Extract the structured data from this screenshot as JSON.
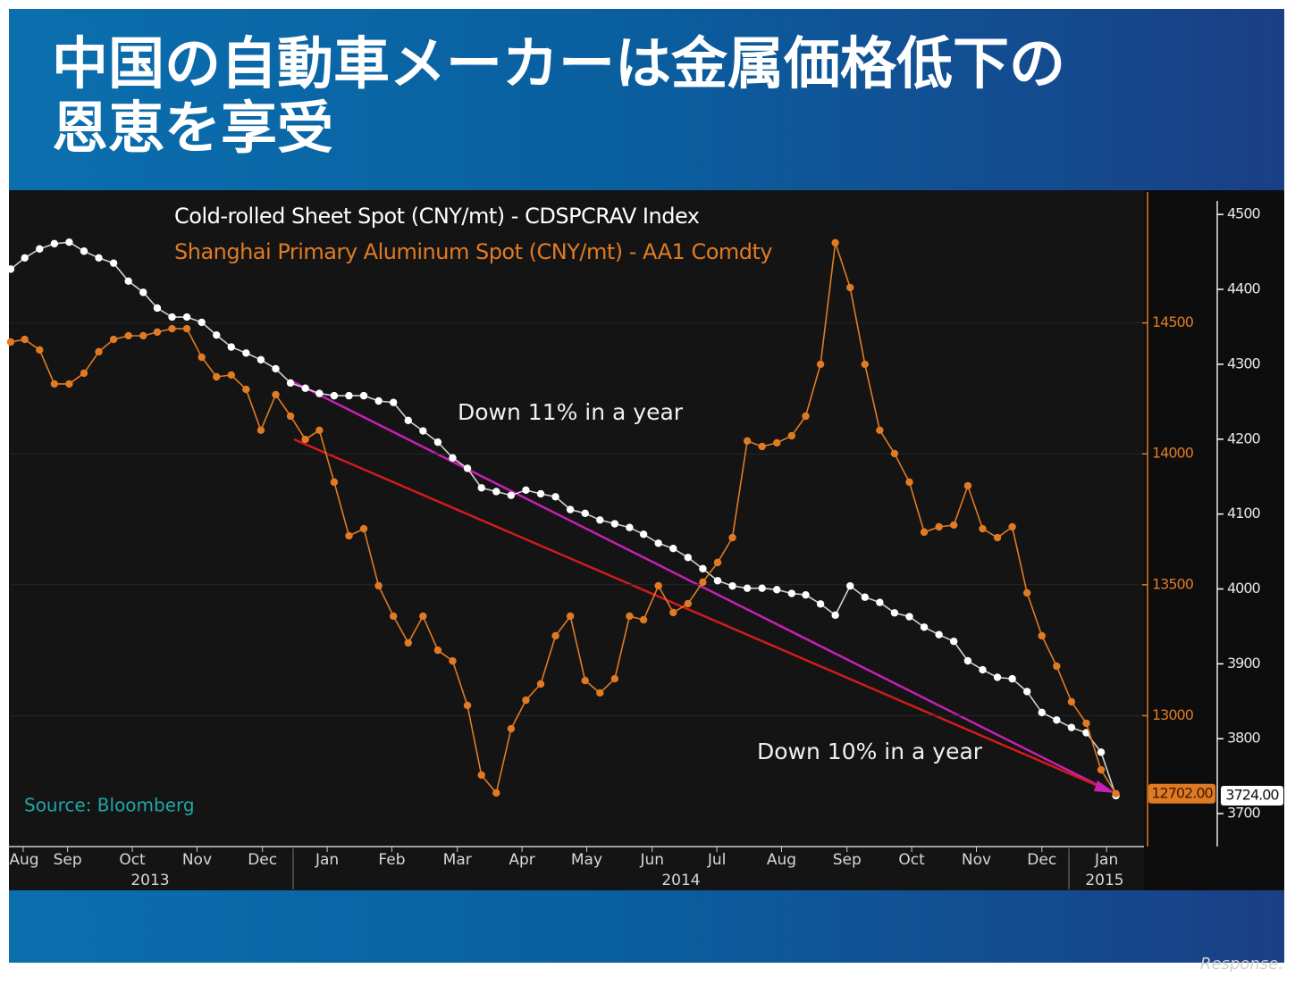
{
  "chart_data": {
    "type": "line",
    "title": [
      "中国の自動車メーカーは金属価格低下の",
      "恩恵を享受"
    ],
    "source": "Source: Bloomberg",
    "annotations": [
      "Down 11% in a year",
      "Down 10% in a year"
    ],
    "watermark": "Response.",
    "year_labels": [
      "2013",
      "2014",
      "2015"
    ],
    "xlim": [
      2013.594,
      2015.048
    ],
    "xticks": [
      {
        "value": 2013.61,
        "label": "Aug"
      },
      {
        "value": 2013.667,
        "label": "Sep"
      },
      {
        "value": 2013.75,
        "label": "Oct"
      },
      {
        "value": 2013.833,
        "label": "Nov"
      },
      {
        "value": 2013.917,
        "label": "Dec"
      },
      {
        "value": 2014,
        "label": "Jan"
      },
      {
        "value": 2014.083,
        "label": "Feb"
      },
      {
        "value": 2014.167,
        "label": "Mar"
      },
      {
        "value": 2014.25,
        "label": "Apr"
      },
      {
        "value": 2014.333,
        "label": "May"
      },
      {
        "value": 2014.417,
        "label": "Jun"
      },
      {
        "value": 2014.5,
        "label": "Jul"
      },
      {
        "value": 2014.583,
        "label": "Aug"
      },
      {
        "value": 2014.667,
        "label": "Sep"
      },
      {
        "value": 2014.75,
        "label": "Oct"
      },
      {
        "value": 2014.833,
        "label": "Nov"
      },
      {
        "value": 2014.917,
        "label": "Dec"
      },
      {
        "value": 2015,
        "label": "Jan"
      }
    ],
    "ylim": [
      12500,
      15000
    ],
    "yticks": [
      13000,
      13500,
      14000,
      14500
    ],
    "y2lim": [
      3656,
      4530
    ],
    "y2ticks": [
      3700,
      3800,
      3900,
      4000,
      4100,
      4200,
      4300,
      4400,
      4500
    ],
    "grid": true,
    "x": [
      2013.594,
      2013.612,
      2013.631,
      2013.65,
      2013.669,
      2013.688,
      2013.707,
      2013.726,
      2013.745,
      2013.764,
      2013.782,
      2013.801,
      2013.82,
      2013.839,
      2013.858,
      2013.877,
      2013.896,
      2013.915,
      2013.934,
      2013.953,
      2013.972,
      2013.99,
      2014.009,
      2014.028,
      2014.047,
      2014.066,
      2014.085,
      2014.104,
      2014.123,
      2014.142,
      2014.161,
      2014.18,
      2014.198,
      2014.217,
      2014.236,
      2014.255,
      2014.274,
      2014.293,
      2014.312,
      2014.331,
      2014.35,
      2014.369,
      2014.388,
      2014.406,
      2014.425,
      2014.444,
      2014.463,
      2014.482,
      2014.501,
      2014.52,
      2014.539,
      2014.558,
      2014.577,
      2014.596,
      2014.614,
      2014.633,
      2014.652,
      2014.671,
      2014.69,
      2014.709,
      2014.728,
      2014.747,
      2014.766,
      2014.785,
      2014.804,
      2014.822,
      2014.841,
      2014.86,
      2014.879,
      2014.898,
      2014.917,
      2014.936,
      2014.955,
      2014.974,
      2014.993,
      2015.012
    ],
    "series": [
      {
        "name": "Cold-rolled Sheet Spot (CNY/mt) - CDSPCRAV Index",
        "color": "#ffffff",
        "axis": "y2",
        "values": [
          4427,
          4442,
          4454,
          4461,
          4463,
          4451,
          4442,
          4435,
          4411,
          4396,
          4375,
          4363,
          4363,
          4356,
          4339,
          4323,
          4315,
          4306,
          4294,
          4275,
          4268,
          4261,
          4258,
          4258,
          4258,
          4251,
          4249,
          4225,
          4211,
          4196,
          4175,
          4161,
          4135,
          4130,
          4125,
          4132,
          4127,
          4123,
          4106,
          4101,
          4092,
          4087,
          4082,
          4073,
          4061,
          4054,
          4042,
          4027,
          4011,
          4004,
          4001,
          4001,
          3999,
          3994,
          3992,
          3980,
          3965,
          4004,
          3989,
          3982,
          3968,
          3963,
          3949,
          3939,
          3930,
          3904,
          3892,
          3882,
          3880,
          3863,
          3835,
          3825,
          3815,
          3808,
          3782,
          3724
        ],
        "value_labels": [
          null,
          null,
          null,
          null,
          null,
          null,
          null,
          null,
          null,
          null,
          null,
          null,
          null,
          null,
          null,
          null,
          null,
          null,
          null,
          null,
          null,
          null,
          null,
          null,
          null,
          null,
          null,
          null,
          null,
          null,
          null,
          null,
          null,
          null,
          null,
          null,
          null,
          null,
          null,
          null,
          null,
          null,
          null,
          null,
          null,
          null,
          null,
          null,
          null,
          null,
          null,
          null,
          null,
          null,
          null,
          null,
          null,
          null,
          null,
          null,
          null,
          null,
          null,
          null,
          null,
          null,
          null,
          null,
          null,
          null,
          null,
          null,
          null,
          null,
          null,
          "3724.00"
        ]
      },
      {
        "name": "Shanghai Primary Aluminum Spot (CNY/mt) - AA1 Comdty",
        "color": "#e07b24",
        "values": [
          14427,
          14437,
          14397,
          14267,
          14267,
          14308,
          14390,
          14437,
          14451,
          14451,
          14465,
          14478,
          14478,
          14369,
          14294,
          14301,
          14246,
          14090,
          14226,
          14144,
          14055,
          14090,
          13892,
          13687,
          13714,
          13496,
          13380,
          13278,
          13380,
          13250,
          13209,
          13039,
          12773,
          12705,
          12950,
          13059,
          13121,
          13305,
          13380,
          13134,
          13087,
          13141,
          13380,
          13366,
          13496,
          13394,
          13428,
          13510,
          13585,
          13680,
          14049,
          14028,
          14042,
          14069,
          14144,
          14342,
          14806,
          14635,
          14342,
          14090,
          14001,
          13892,
          13701,
          13721,
          13728,
          13878,
          13714,
          13680,
          13721,
          13469,
          13305,
          13189,
          13053,
          12971,
          12793,
          12702
        ],
        "value_labels": [
          null,
          null,
          null,
          null,
          null,
          null,
          null,
          null,
          null,
          null,
          null,
          null,
          null,
          null,
          null,
          null,
          null,
          null,
          null,
          null,
          null,
          null,
          null,
          null,
          null,
          null,
          null,
          null,
          null,
          null,
          null,
          null,
          null,
          null,
          null,
          null,
          null,
          null,
          null,
          null,
          null,
          null,
          null,
          null,
          null,
          null,
          null,
          null,
          null,
          null,
          null,
          null,
          null,
          null,
          null,
          null,
          null,
          null,
          null,
          null,
          null,
          null,
          null,
          null,
          null,
          null,
          null,
          null,
          null,
          null,
          null,
          null,
          null,
          null,
          null,
          "12702.00"
        ]
      }
    ]
  }
}
